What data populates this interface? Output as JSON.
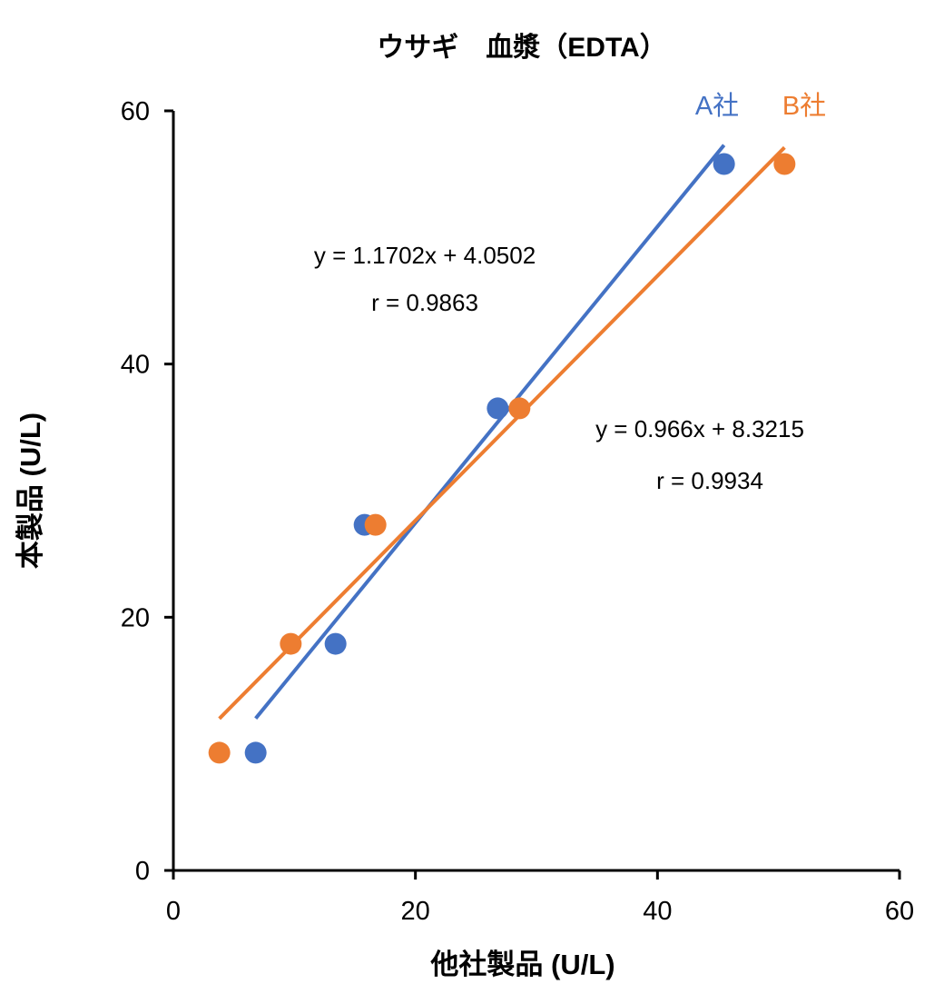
{
  "chart_data": {
    "type": "scatter",
    "title": "ウサギ　血漿（EDTA）",
    "xlabel": "他社製品 (U/L)",
    "ylabel": "本製品 (U/L)",
    "xlim": [
      0,
      60
    ],
    "ylim": [
      0,
      60
    ],
    "xticks": [
      0,
      20,
      40,
      60
    ],
    "yticks": [
      0,
      20,
      40,
      60
    ],
    "grid": false,
    "series": [
      {
        "name": "A社",
        "color": "#4472C4",
        "x": [
          6.8,
          13.4,
          15.8,
          26.8,
          45.5
        ],
        "y": [
          9.3,
          17.9,
          27.3,
          36.5,
          55.8
        ],
        "trendline": {
          "slope": 1.1702,
          "intercept": 4.0502
        },
        "equation": "y = 1.1702x + 4.0502",
        "r": "r = 0.9863"
      },
      {
        "name": "B社",
        "color": "#ED7D31",
        "x": [
          3.8,
          9.7,
          16.7,
          28.6,
          50.5
        ],
        "y": [
          9.3,
          17.9,
          27.3,
          36.5,
          55.8
        ],
        "trendline": {
          "slope": 0.966,
          "intercept": 8.3215
        },
        "equation": "y = 0.966x + 8.3215",
        "r": "r = 0.9934"
      }
    ]
  }
}
